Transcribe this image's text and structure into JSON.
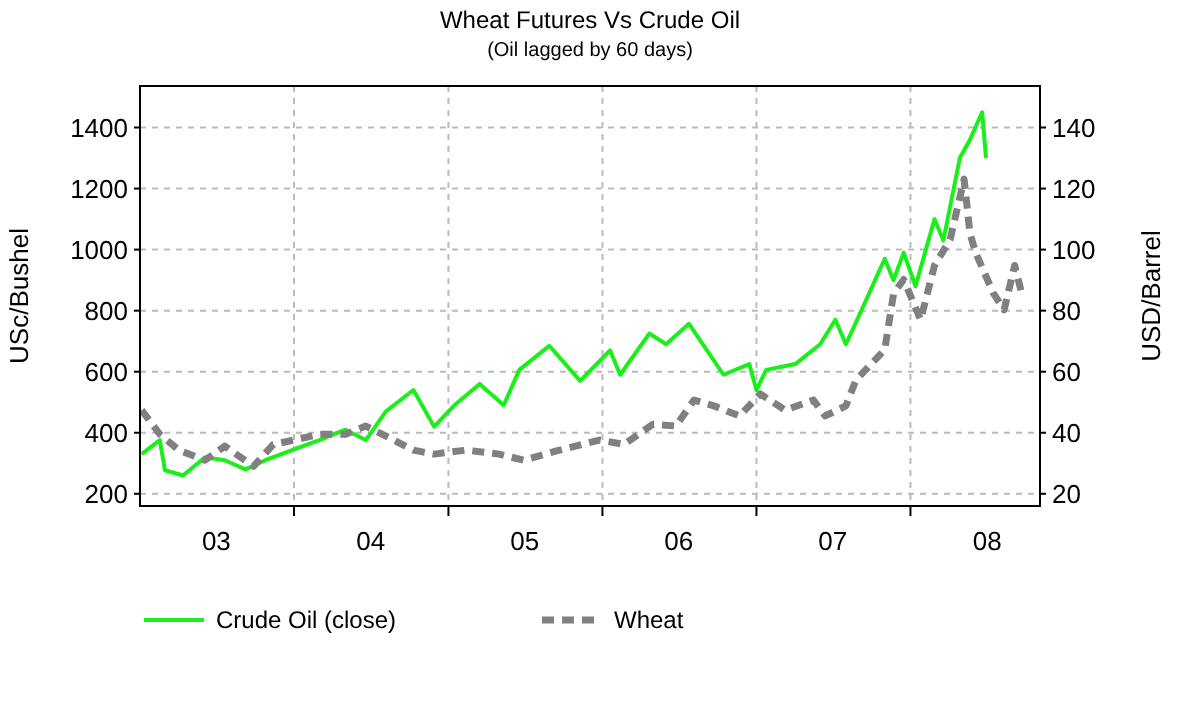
{
  "chart_data": {
    "type": "line",
    "title": "Wheat Futures Vs Crude Oil",
    "subtitle": "(Oil lagged by 60 days)",
    "ylabel": "USc/Bushel",
    "y2label": "USD/Barrel",
    "xlim": [
      "2003-01-01",
      "2008-11-03"
    ],
    "xticks": [
      {
        "value": "2003-07-01",
        "label": "03"
      },
      {
        "value": "2004-01-01",
        "label": null
      },
      {
        "value": "2004-07-01",
        "label": "04"
      },
      {
        "value": "2005-01-01",
        "label": null
      },
      {
        "value": "2005-07-01",
        "label": "05"
      },
      {
        "value": "2006-01-01",
        "label": null
      },
      {
        "value": "2006-07-01",
        "label": "06"
      },
      {
        "value": "2007-01-01",
        "label": null
      },
      {
        "value": "2007-07-01",
        "label": "07"
      },
      {
        "value": "2008-01-01",
        "label": null
      },
      {
        "value": "2008-07-01",
        "label": "08"
      }
    ],
    "ylim": [
      160,
      1536
    ],
    "yticks": [
      200,
      400,
      600,
      800,
      1000,
      1200,
      1400
    ],
    "y2lim": [
      16,
      153.6
    ],
    "y2ticks": [
      20,
      40,
      60,
      80,
      100,
      120,
      140
    ],
    "grid": true,
    "legend": "bottom",
    "marker": "none",
    "series": [
      {
        "name": "Crude Oil (close)",
        "color": "#19ef19",
        "axis": "y2",
        "line_style": "solid",
        "x": [
          "2003-01-05",
          "2003-02-17",
          "2003-03-01",
          "2003-04-13",
          "2003-06-04",
          "2003-07-21",
          "2003-09-08",
          "2003-10-25",
          "2003-12-21",
          "2004-03-01",
          "2004-05-02",
          "2004-06-19",
          "2004-08-06",
          "2004-10-10",
          "2004-11-28",
          "2005-01-15",
          "2005-03-16",
          "2005-05-12",
          "2005-06-18",
          "2005-08-28",
          "2005-11-09",
          "2006-01-19",
          "2006-02-12",
          "2006-04-22",
          "2006-06-01",
          "2006-07-25",
          "2006-10-15",
          "2006-12-15",
          "2007-01-01",
          "2007-01-24",
          "2007-04-03",
          "2007-06-01",
          "2007-07-07",
          "2007-08-01",
          "2007-09-13",
          "2007-11-01",
          "2007-11-22",
          "2007-12-16",
          "2008-01-13",
          "2008-02-27",
          "2008-03-19",
          "2008-04-27",
          "2008-05-21",
          "2008-06-19",
          "2008-06-28"
        ],
        "values": [
          33,
          37.6,
          27.7,
          26,
          32,
          31,
          28,
          31,
          34,
          37.6,
          41,
          37.6,
          47,
          54,
          42,
          49,
          56,
          49,
          60.6,
          68.5,
          57,
          67,
          59,
          72.5,
          69,
          75.7,
          59,
          62.5,
          54,
          60.6,
          62.5,
          69,
          77,
          69,
          82,
          97,
          90,
          99,
          88,
          110,
          103,
          130,
          136,
          145,
          130
        ]
      },
      {
        "name": "Wheat",
        "color": "#808080",
        "line_style": "dashed",
        "x": [
          "2003-01-05",
          "2003-02-17",
          "2003-04-03",
          "2003-06-04",
          "2003-07-21",
          "2003-09-27",
          "2003-11-13",
          "2004-01-01",
          "2004-03-01",
          "2004-05-02",
          "2004-06-19",
          "2004-08-06",
          "2004-10-10",
          "2004-11-28",
          "2005-02-12",
          "2005-05-01",
          "2005-06-28",
          "2005-09-21",
          "2005-12-25",
          "2006-02-21",
          "2006-05-01",
          "2006-06-24",
          "2006-08-06",
          "2006-09-22",
          "2006-11-22",
          "2007-01-10",
          "2007-03-10",
          "2007-05-16",
          "2007-06-13",
          "2007-08-01",
          "2007-08-25",
          "2007-11-01",
          "2007-11-22",
          "2007-12-16",
          "2008-01-25",
          "2008-02-27",
          "2008-04-04",
          "2008-05-07",
          "2008-05-21",
          "2008-06-04",
          "2008-07-16",
          "2008-08-10",
          "2008-09-04",
          "2008-09-22"
        ],
        "values": [
          474,
          395,
          343,
          310,
          356,
          290,
          362,
          376,
          395,
          395,
          422,
          389,
          343,
          330,
          343,
          330,
          310,
          343,
          376,
          362,
          428,
          422,
          507,
          488,
          455,
          527,
          474,
          507,
          455,
          488,
          573,
          672,
          856,
          902,
          770,
          948,
          1033,
          1231,
          1053,
          988,
          856,
          803,
          948,
          849
        ]
      }
    ]
  }
}
